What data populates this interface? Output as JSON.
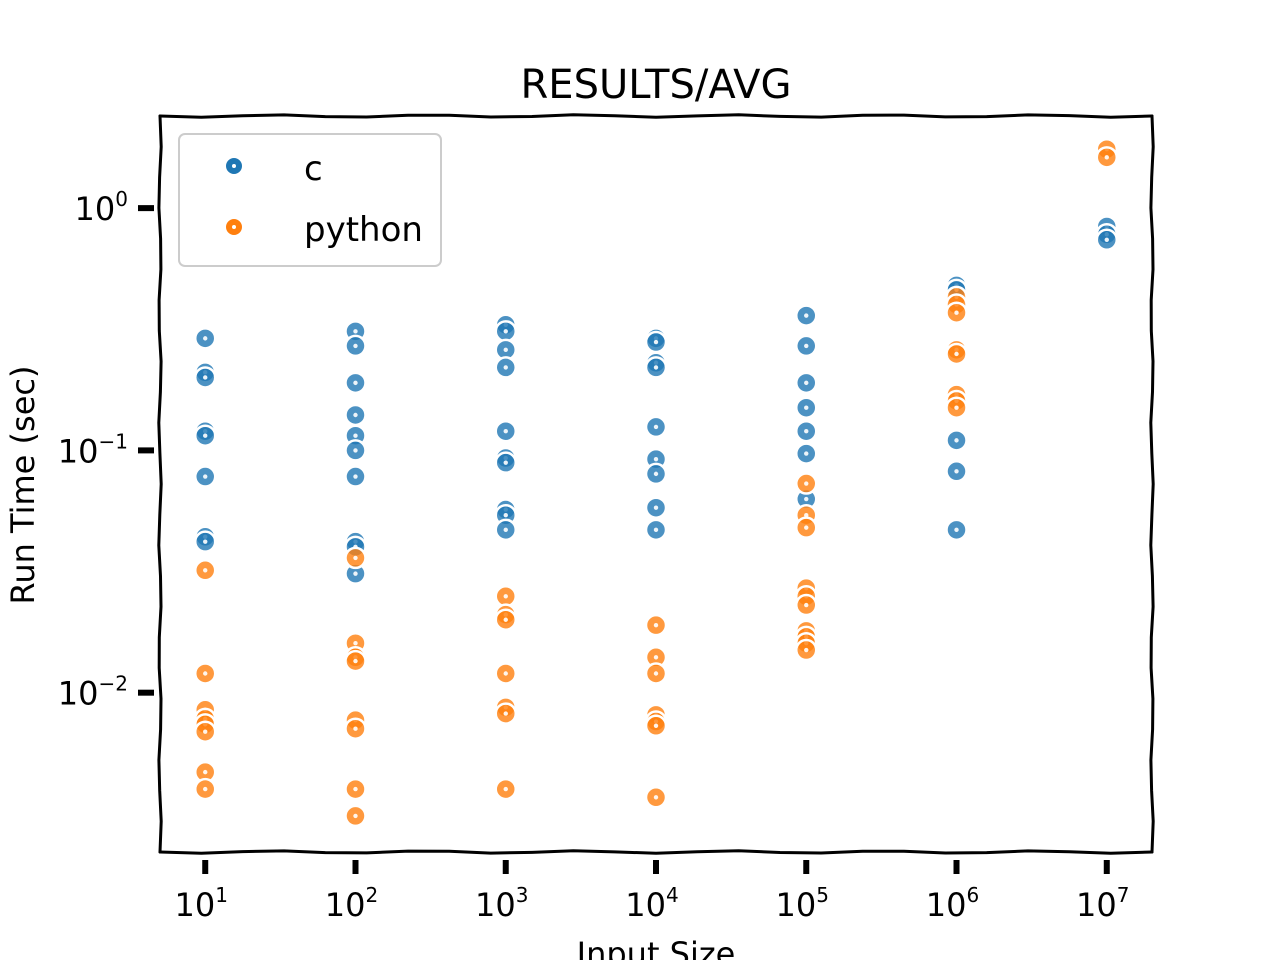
{
  "chart_data": {
    "type": "scatter",
    "title": "RESULTS/AVG",
    "xlabel": "Input Size",
    "ylabel": "Run Time (sec)",
    "x_scale": "log",
    "y_scale": "log",
    "xlim": [
      5,
      20000000
    ],
    "ylim": [
      0.0022,
      2.4
    ],
    "x_ticks": [
      {
        "value": 10,
        "base": "10",
        "exp": "1"
      },
      {
        "value": 100,
        "base": "10",
        "exp": "2"
      },
      {
        "value": 1000,
        "base": "10",
        "exp": "3"
      },
      {
        "value": 10000,
        "base": "10",
        "exp": "4"
      },
      {
        "value": 100000,
        "base": "10",
        "exp": "5"
      },
      {
        "value": 1000000,
        "base": "10",
        "exp": "6"
      },
      {
        "value": 10000000,
        "base": "10",
        "exp": "7"
      }
    ],
    "y_ticks": [
      {
        "value": 1,
        "base": "10",
        "exp": "0"
      },
      {
        "value": 0.1,
        "base": "10",
        "exp": "−1"
      },
      {
        "value": 0.01,
        "base": "10",
        "exp": "−2"
      }
    ],
    "legend_position": "top-left",
    "series": [
      {
        "name": "c",
        "color": "#1f77b4",
        "points": [
          [
            10,
            0.29
          ],
          [
            10,
            0.21
          ],
          [
            10,
            0.2
          ],
          [
            10,
            0.12
          ],
          [
            10,
            0.115
          ],
          [
            10,
            0.078
          ],
          [
            10,
            0.044
          ],
          [
            10,
            0.042
          ],
          [
            100,
            0.31
          ],
          [
            100,
            0.27
          ],
          [
            100,
            0.19
          ],
          [
            100,
            0.14
          ],
          [
            100,
            0.115
          ],
          [
            100,
            0.1
          ],
          [
            100,
            0.078
          ],
          [
            100,
            0.042
          ],
          [
            100,
            0.04
          ],
          [
            100,
            0.031
          ],
          [
            1000,
            0.33
          ],
          [
            1000,
            0.31
          ],
          [
            1000,
            0.26
          ],
          [
            1000,
            0.22
          ],
          [
            1000,
            0.12
          ],
          [
            1000,
            0.093
          ],
          [
            1000,
            0.089
          ],
          [
            1000,
            0.057
          ],
          [
            1000,
            0.054
          ],
          [
            1000,
            0.047
          ],
          [
            10000,
            0.29
          ],
          [
            10000,
            0.28
          ],
          [
            10000,
            0.23
          ],
          [
            10000,
            0.22
          ],
          [
            10000,
            0.125
          ],
          [
            10000,
            0.092
          ],
          [
            10000,
            0.08
          ],
          [
            10000,
            0.058
          ],
          [
            10000,
            0.047
          ],
          [
            100000,
            0.36
          ],
          [
            100000,
            0.27
          ],
          [
            100000,
            0.19
          ],
          [
            100000,
            0.15
          ],
          [
            100000,
            0.12
          ],
          [
            100000,
            0.097
          ],
          [
            100000,
            0.063
          ],
          [
            1000000,
            0.48
          ],
          [
            1000000,
            0.46
          ],
          [
            1000000,
            0.11
          ],
          [
            1000000,
            0.082
          ],
          [
            1000000,
            0.047
          ],
          [
            10000000,
            0.84
          ],
          [
            10000000,
            0.78
          ],
          [
            10000000,
            0.74
          ]
        ]
      },
      {
        "name": "python",
        "color": "#ff7f0e",
        "points": [
          [
            10,
            0.032
          ],
          [
            10,
            0.012
          ],
          [
            10,
            0.0085
          ],
          [
            10,
            0.0078
          ],
          [
            10,
            0.0074
          ],
          [
            10,
            0.0069
          ],
          [
            10,
            0.0047
          ],
          [
            10,
            0.004
          ],
          [
            100,
            0.036
          ],
          [
            100,
            0.016
          ],
          [
            100,
            0.014
          ],
          [
            100,
            0.0135
          ],
          [
            100,
            0.0077
          ],
          [
            100,
            0.0071
          ],
          [
            100,
            0.004
          ],
          [
            100,
            0.0031
          ],
          [
            1000,
            0.025
          ],
          [
            1000,
            0.021
          ],
          [
            1000,
            0.02
          ],
          [
            1000,
            0.012
          ],
          [
            1000,
            0.0087
          ],
          [
            1000,
            0.0082
          ],
          [
            1000,
            0.004
          ],
          [
            10000,
            0.019
          ],
          [
            10000,
            0.014
          ],
          [
            10000,
            0.012
          ],
          [
            10000,
            0.0081
          ],
          [
            10000,
            0.0076
          ],
          [
            10000,
            0.0073
          ],
          [
            10000,
            0.0037
          ],
          [
            100000,
            0.073
          ],
          [
            100000,
            0.054
          ],
          [
            100000,
            0.048
          ],
          [
            100000,
            0.027
          ],
          [
            100000,
            0.025
          ],
          [
            100000,
            0.023
          ],
          [
            100000,
            0.018
          ],
          [
            100000,
            0.017
          ],
          [
            100000,
            0.016
          ],
          [
            100000,
            0.015
          ],
          [
            1000000,
            0.43
          ],
          [
            1000000,
            0.4
          ],
          [
            1000000,
            0.37
          ],
          [
            1000000,
            0.26
          ],
          [
            1000000,
            0.25
          ],
          [
            1000000,
            0.17
          ],
          [
            1000000,
            0.16
          ],
          [
            1000000,
            0.15
          ],
          [
            10000000,
            1.75
          ],
          [
            10000000,
            1.62
          ]
        ]
      }
    ]
  }
}
